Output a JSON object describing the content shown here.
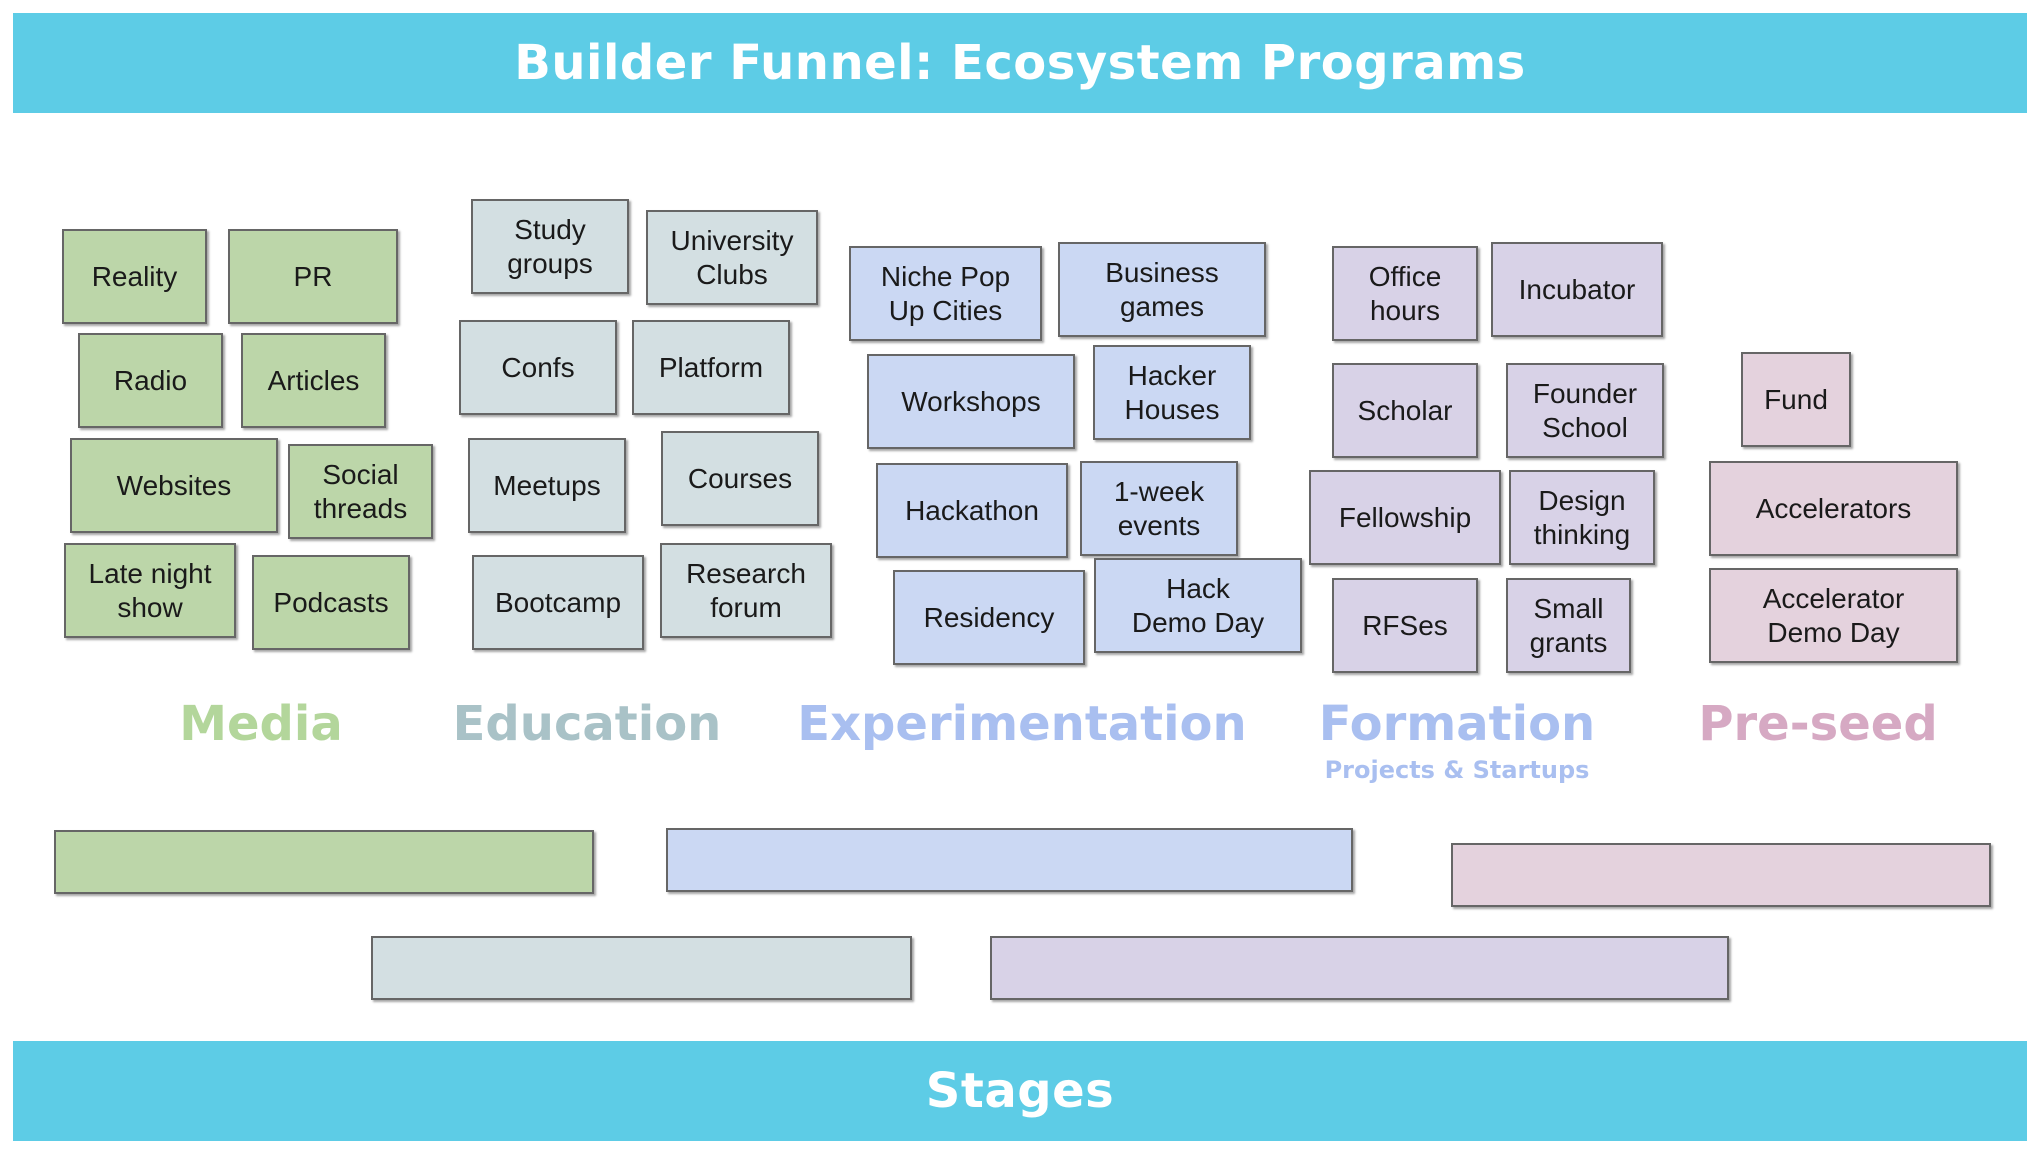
{
  "title": "Builder Funnel: Ecosystem Programs",
  "footer": "Stages",
  "colors": {
    "banner": "#5dcce6",
    "media": "#bcd6a9",
    "education": "#d3dfe2",
    "experimentation": "#cbd8f3",
    "formation": "#d8d2e7",
    "preseed": "#e4d2dd"
  },
  "stages": [
    {
      "key": "media",
      "label": "Media",
      "sublabel": "",
      "label_color": "#b3d69b",
      "fill": "#bcd6a9",
      "items": [
        "Reality",
        "PR",
        "Radio",
        "Articles",
        "Websites",
        "Social\nthreads",
        "Late night\nshow",
        "Podcasts"
      ]
    },
    {
      "key": "education",
      "label": "Education",
      "sublabel": "",
      "label_color": "#a9c2c7",
      "fill": "#d3dfe2",
      "items": [
        "Study\ngroups",
        "University\nClubs",
        "Confs",
        "Platform",
        "Meetups",
        "Courses",
        "Bootcamp",
        "Research\nforum"
      ]
    },
    {
      "key": "experimentation",
      "label": "Experimentation",
      "sublabel": "",
      "label_color": "#a9bff0",
      "fill": "#cbd8f3",
      "items": [
        "Niche Pop\nUp Cities",
        "Business\ngames",
        "Workshops",
        "Hacker\nHouses",
        "Hackathon",
        "1-week\nevents",
        "Residency",
        "Hack\nDemo Day"
      ]
    },
    {
      "key": "formation",
      "label": "Formation",
      "sublabel": "Projects & Startups",
      "label_color": "#a9bff0",
      "fill": "#d8d2e7",
      "items": [
        "Office\nhours",
        "Incubator",
        "Scholar",
        "Founder\nSchool",
        "Fellowship",
        "Design\nthinking",
        "RFSes",
        "Small\ngrants"
      ]
    },
    {
      "key": "preseed",
      "label": "Pre-seed",
      "sublabel": "",
      "label_color": "#d6a9c3",
      "fill": "#e4d2dd",
      "items": [
        "Fund",
        "Accelerators",
        "Accelerator\nDemo Day"
      ]
    }
  ]
}
